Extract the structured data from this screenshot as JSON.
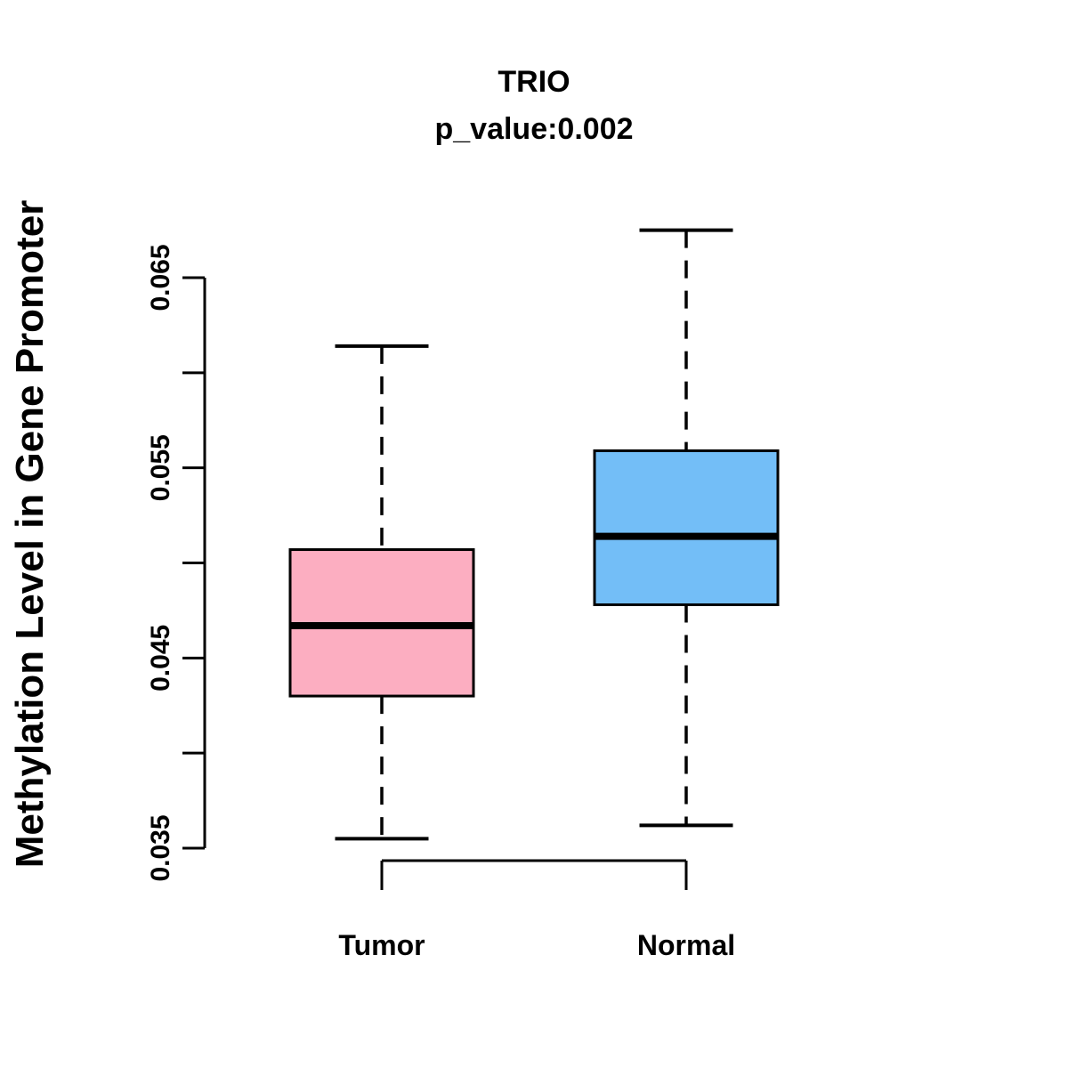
{
  "chart_data": {
    "type": "boxplot",
    "title": "TRIO",
    "subtitle": "p_value:0.002",
    "gene": "TRIO",
    "p_value": 0.002,
    "ylabel": "Methylation Level in Gene Promoter",
    "xlabel": "",
    "categories": [
      "Tumor",
      "Normal"
    ],
    "series": [
      {
        "name": "Tumor",
        "fill_color": "#FCAEC1",
        "whisker_low": 0.0355,
        "q1": 0.043,
        "median": 0.0467,
        "q3": 0.0507,
        "whisker_high": 0.0614
      },
      {
        "name": "Normal",
        "fill_color": "#73BEF7",
        "whisker_low": 0.0362,
        "q1": 0.0478,
        "median": 0.0514,
        "q3": 0.0559,
        "whisker_high": 0.0675
      }
    ],
    "y_axis": {
      "range": [
        0.035,
        0.065
      ],
      "ticks": [
        {
          "value": 0.035,
          "label": "0.035"
        },
        {
          "value": 0.04,
          "label": ""
        },
        {
          "value": 0.045,
          "label": "0.045"
        },
        {
          "value": 0.05,
          "label": ""
        },
        {
          "value": 0.055,
          "label": "0.055"
        },
        {
          "value": 0.06,
          "label": ""
        },
        {
          "value": 0.065,
          "label": "0.065"
        }
      ]
    },
    "legend": "none",
    "grid": "off",
    "stroke_color": "#000000",
    "background_color": "#FFFFFF"
  }
}
